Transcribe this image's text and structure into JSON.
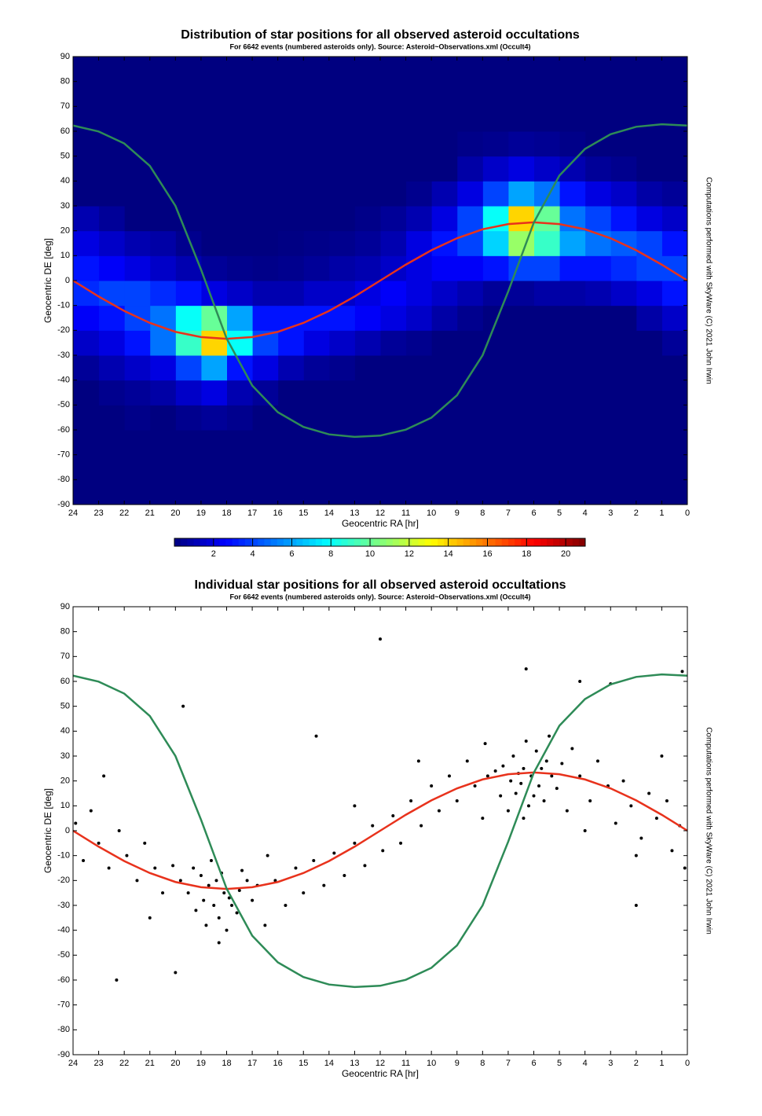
{
  "chart_data": [
    {
      "type": "heatmap",
      "title": "Distribution of star positions for all observed asteroid occultations",
      "subtitle": "For 6642 events (numbered asteroids only). Source: Asteroid~Observations.xml (Occult4)",
      "side_note": "Computations performed with SkyWare (C) 2021 John Irwin",
      "xlabel": "Geocentric RA [hr]",
      "ylabel": "Geocentric DE [deg]",
      "xlim": [
        24,
        0
      ],
      "xticks": [
        24,
        23,
        22,
        21,
        20,
        19,
        18,
        17,
        16,
        15,
        14,
        13,
        12,
        11,
        10,
        9,
        8,
        7,
        6,
        5,
        4,
        3,
        2,
        1,
        0
      ],
      "ylim": [
        -90,
        90
      ],
      "yticks": [
        -90,
        -80,
        -70,
        -60,
        -50,
        -40,
        -30,
        -20,
        -10,
        0,
        10,
        20,
        30,
        40,
        50,
        60,
        70,
        80,
        90
      ],
      "xbins": [
        0,
        1,
        2,
        3,
        4,
        5,
        6,
        7,
        8,
        9,
        10,
        11,
        12,
        13,
        14,
        15,
        16,
        17,
        18,
        19,
        20,
        21,
        22,
        23,
        24
      ],
      "ybins": [
        -90,
        -80,
        -70,
        -60,
        -50,
        -40,
        -30,
        -20,
        -10,
        0,
        10,
        20,
        30,
        40,
        50,
        60,
        70,
        80,
        90
      ],
      "colormap": "jet",
      "zlim": [
        0,
        21
      ],
      "colorbar_ticks": [
        2,
        4,
        6,
        8,
        10,
        12,
        14,
        16,
        18,
        20
      ],
      "z": [
        [
          0,
          0,
          0,
          0,
          0,
          0,
          0,
          0,
          0,
          0,
          0,
          0,
          0,
          0,
          0,
          0,
          0,
          0,
          0,
          0,
          0,
          0,
          0,
          0
        ],
        [
          0,
          0,
          0,
          0,
          0,
          0,
          0,
          0,
          0,
          0,
          0,
          0,
          0,
          0,
          0,
          0,
          0,
          0,
          0,
          0,
          0,
          0,
          0,
          0
        ],
        [
          0,
          0,
          0,
          0,
          0,
          0,
          0,
          0,
          0,
          0,
          0,
          0,
          0,
          0,
          0,
          0,
          0,
          0,
          0,
          0,
          0,
          0,
          0,
          0
        ],
        [
          0,
          0,
          0,
          0,
          0,
          0,
          0,
          0,
          0,
          0,
          0,
          0,
          0,
          0,
          0,
          0,
          0,
          0.3,
          0.5,
          0.3,
          0,
          0.2,
          0,
          0
        ],
        [
          0,
          0,
          0,
          0,
          0,
          0,
          0,
          0,
          0,
          0,
          0,
          0,
          0,
          0,
          0,
          0,
          0.5,
          1,
          2,
          1.5,
          0.8,
          0.5,
          0.3,
          0
        ],
        [
          0,
          0,
          0,
          0,
          0,
          0,
          0,
          0,
          0,
          0,
          0,
          0,
          0,
          0.3,
          0.5,
          1,
          2,
          3,
          6,
          4,
          2,
          1.5,
          1,
          0.5
        ],
        [
          0.5,
          0,
          0,
          0,
          0,
          0,
          0,
          0,
          0,
          0,
          0.3,
          0.5,
          1,
          1.5,
          2,
          3,
          4,
          8,
          14,
          9,
          5,
          3,
          2,
          1.5
        ],
        [
          1.5,
          0.8,
          0,
          0,
          0,
          0,
          0,
          0,
          0.3,
          0.8,
          1.5,
          2,
          2.5,
          3,
          3,
          3,
          3,
          6,
          10,
          8,
          5,
          4,
          3,
          2.5
        ],
        [
          3,
          2,
          1.5,
          1,
          0.8,
          0.8,
          0.5,
          0.5,
          1,
          1.5,
          2,
          2.5,
          2,
          1.5,
          1.5,
          1,
          1,
          1.5,
          2,
          3,
          3.5,
          4,
          4,
          3.5
        ],
        [
          4,
          4,
          3.5,
          3,
          3,
          4,
          4,
          3,
          2.5,
          2.5,
          2,
          1.5,
          1,
          0.8,
          0.5,
          0.3,
          0.2,
          0.3,
          0.5,
          1,
          1.5,
          2,
          2.5,
          3
        ],
        [
          3,
          4,
          4.5,
          5,
          6,
          9,
          11,
          7,
          4,
          3,
          2,
          1,
          0.5,
          0.3,
          0.2,
          0.1,
          0,
          0,
          0,
          0.3,
          0.8,
          1,
          1.5,
          2
        ],
        [
          1.5,
          2,
          3,
          4,
          5,
          10,
          14,
          8,
          4,
          2,
          1,
          0.5,
          0.2,
          0,
          0,
          0,
          0,
          0,
          0,
          0,
          0,
          0,
          0.5,
          1
        ],
        [
          0.5,
          0.8,
          1.5,
          2,
          3,
          5,
          6,
          4,
          2,
          1,
          0.3,
          0,
          0,
          0,
          0,
          0,
          0,
          0,
          0,
          0,
          0,
          0,
          0,
          0
        ],
        [
          0,
          0,
          0.3,
          0.5,
          1,
          1.5,
          2,
          1.5,
          0.8,
          0,
          0,
          0,
          0,
          0,
          0,
          0,
          0,
          0,
          0,
          0,
          0,
          0,
          0,
          0
        ],
        [
          0,
          0,
          0,
          0,
          0.2,
          0.4,
          0.5,
          0.3,
          0.2,
          0,
          0,
          0,
          0,
          0,
          0,
          0,
          0,
          0,
          0,
          0,
          0,
          0,
          0,
          0
        ],
        [
          0,
          0,
          0,
          0,
          0,
          0,
          0,
          0,
          0,
          0,
          0,
          0,
          0,
          0,
          0,
          0,
          0,
          0,
          0,
          0,
          0,
          0,
          0,
          0
        ],
        [
          0,
          0,
          0,
          0,
          0,
          0,
          0,
          0,
          0,
          0,
          0,
          0,
          0,
          0,
          0,
          0,
          0,
          0,
          0,
          0,
          0,
          0,
          0,
          0
        ],
        [
          0,
          0,
          0,
          0,
          0,
          0,
          0,
          0,
          0,
          0,
          0,
          0,
          0,
          0,
          0,
          0,
          0,
          0,
          0,
          0,
          0,
          0,
          0,
          0
        ]
      ],
      "x": [
        0,
        1,
        2,
        3,
        4,
        5,
        6,
        7,
        8,
        9,
        10,
        11,
        12,
        13,
        14,
        15,
        16,
        17,
        18,
        19,
        20,
        21,
        22,
        23,
        24
      ],
      "series": [
        {
          "color": "#e8321c",
          "values": [
            0,
            6.4,
            12.2,
            17.0,
            20.6,
            22.7,
            23.4,
            22.7,
            20.6,
            17.0,
            12.2,
            6.4,
            0,
            -6.4,
            -12.2,
            -17.0,
            -20.6,
            -22.7,
            -23.4,
            -22.7,
            -20.6,
            -17.0,
            -12.2,
            -6.4,
            0
          ]
        },
        {
          "color": "#2e8b57",
          "values": [
            62.3,
            62.8,
            61.8,
            58.8,
            52.9,
            42.2,
            23.3,
            -4.4,
            -30.0,
            -46.1,
            -55.1,
            -59.9,
            -62.3,
            -62.8,
            -61.8,
            -58.8,
            -52.9,
            -42.2,
            -23.3,
            4.4,
            30.0,
            46.1,
            55.1,
            59.9,
            62.3
          ]
        }
      ]
    },
    {
      "type": "scatter",
      "title": "Individual star positions for all observed asteroid occultations",
      "subtitle": "For 6642 events (numbered asteroids only). Source: Asteroid~Observations.xml (Occult4)",
      "side_note": "Computations performed with SkyWare (C) 2021 John Irwin",
      "xlabel": "Geocentric RA [hr]",
      "ylabel": "Geocentric DE [deg]",
      "xlim": [
        24,
        0
      ],
      "xticks": [
        24,
        23,
        22,
        21,
        20,
        19,
        18,
        17,
        16,
        15,
        14,
        13,
        12,
        11,
        10,
        9,
        8,
        7,
        6,
        5,
        4,
        3,
        2,
        1,
        0
      ],
      "ylim": [
        -90,
        90
      ],
      "yticks": [
        -90,
        -80,
        -70,
        -60,
        -50,
        -40,
        -30,
        -20,
        -10,
        0,
        10,
        20,
        30,
        40,
        50,
        60,
        70,
        80,
        90
      ],
      "point_color": "#000000",
      "points": {
        "x": [
          6.1,
          5.8,
          6.4,
          6.7,
          5.5,
          6.9,
          6.2,
          5.9,
          7.2,
          6.5,
          5.3,
          6.0,
          6.8,
          7.5,
          5.6,
          6.3,
          7.0,
          5.1,
          6.6,
          5.7,
          7.8,
          4.9,
          6.4,
          5.4,
          7.3,
          18.1,
          18.4,
          17.8,
          18.7,
          19.0,
          17.5,
          18.3,
          18.9,
          17.2,
          19.3,
          18.0,
          18.6,
          17.6,
          19.5,
          18.2,
          17.9,
          18.8,
          19.8,
          17.0,
          18.5,
          16.8,
          19.2,
          20.1,
          18.3,
          17.4,
          0.3,
          0.6,
          0.8,
          1.2,
          1.5,
          1.8,
          2.2,
          2.5,
          2.8,
          3.1,
          3.5,
          3.8,
          4.2,
          4.5,
          4.7,
          7.9,
          8.3,
          8.6,
          9.0,
          9.3,
          9.7,
          10.0,
          10.4,
          10.8,
          11.2,
          11.5,
          11.9,
          12.3,
          12.6,
          13.0,
          13.4,
          13.8,
          14.2,
          14.6,
          15.0,
          15.3,
          15.7,
          16.1,
          16.4,
          20.5,
          20.8,
          21.2,
          21.5,
          21.9,
          22.2,
          22.6,
          23.0,
          23.3,
          23.6,
          23.9,
          0.1,
          2.0,
          4.0,
          8.0,
          10.5,
          13.0,
          16.5,
          21.0,
          22.8,
          1.0,
          12.0,
          19.7,
          6.3,
          22.3,
          0.2,
          4.2,
          2.0,
          14.5,
          20.0,
          3.0
        ],
        "y": [
          22,
          18,
          25,
          15,
          28,
          20,
          10,
          32,
          26,
          19,
          22,
          14,
          30,
          24,
          12,
          36,
          8,
          17,
          23,
          25,
          22,
          27,
          5,
          38,
          14,
          -25,
          -20,
          -30,
          -22,
          -18,
          -24,
          -35,
          -28,
          -20,
          -15,
          -40,
          -12,
          -33,
          -25,
          -17,
          -27,
          -38,
          -20,
          -28,
          -30,
          -22,
          -32,
          -14,
          -45,
          -16,
          2,
          -8,
          12,
          5,
          15,
          -3,
          10,
          20,
          3,
          18,
          28,
          12,
          22,
          33,
          8,
          35,
          18,
          28,
          12,
          22,
          8,
          18,
          2,
          12,
          -5,
          6,
          -8,
          2,
          -14,
          -5,
          -18,
          -9,
          -22,
          -12,
          -25,
          -15,
          -30,
          -20,
          -10,
          -25,
          -15,
          -5,
          -20,
          -10,
          0,
          -15,
          -5,
          8,
          -12,
          3,
          -15,
          -10,
          0,
          5,
          28,
          10,
          -38,
          -35,
          22,
          30,
          77,
          50,
          65,
          -60,
          64,
          60,
          -30,
          38,
          -57,
          59
        ]
      },
      "x": [
        0,
        1,
        2,
        3,
        4,
        5,
        6,
        7,
        8,
        9,
        10,
        11,
        12,
        13,
        14,
        15,
        16,
        17,
        18,
        19,
        20,
        21,
        22,
        23,
        24
      ],
      "series": [
        {
          "color": "#e8321c",
          "values": [
            0,
            6.4,
            12.2,
            17.0,
            20.6,
            22.7,
            23.4,
            22.7,
            20.6,
            17.0,
            12.2,
            6.4,
            0,
            -6.4,
            -12.2,
            -17.0,
            -20.6,
            -22.7,
            -23.4,
            -22.7,
            -20.6,
            -17.0,
            -12.2,
            -6.4,
            0
          ]
        },
        {
          "color": "#2e8b57",
          "values": [
            62.3,
            62.8,
            61.8,
            58.8,
            52.9,
            42.2,
            23.3,
            -4.4,
            -30.0,
            -46.1,
            -55.1,
            -59.9,
            -62.3,
            -62.8,
            -61.8,
            -58.8,
            -52.9,
            -42.2,
            -23.3,
            4.4,
            30.0,
            46.1,
            55.1,
            59.9,
            62.3
          ]
        }
      ]
    }
  ]
}
